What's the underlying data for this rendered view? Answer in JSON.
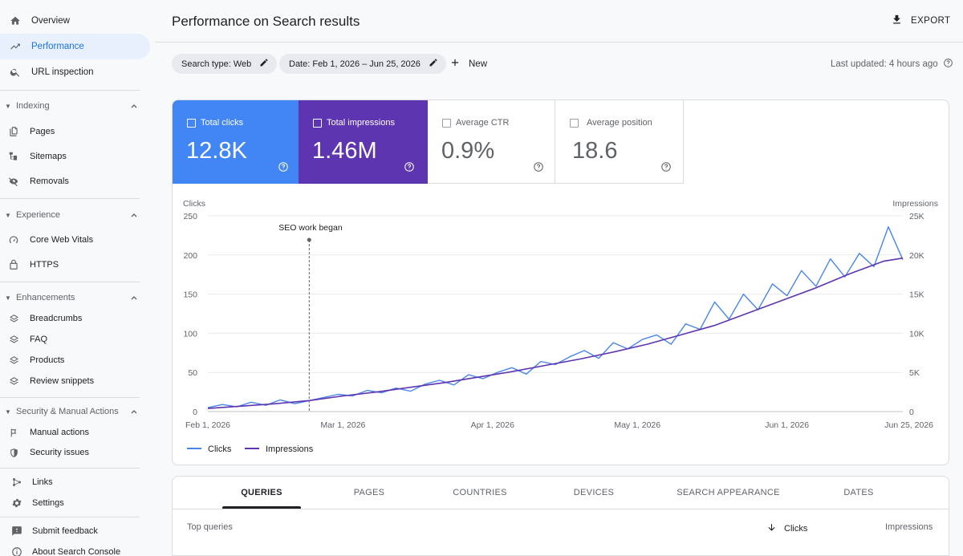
{
  "sidebar": {
    "top_items": [
      {
        "label": "Overview",
        "icon": "home-icon"
      },
      {
        "label": "Performance",
        "icon": "trending-up-icon"
      },
      {
        "label": "URL inspection",
        "icon": "search-icon"
      }
    ],
    "sections": [
      {
        "title": "Indexing",
        "items": [
          {
            "label": "Pages",
            "icon": "pages-icon"
          },
          {
            "label": "Sitemaps",
            "icon": "sitemap-icon"
          },
          {
            "label": "Removals",
            "icon": "eye-off-icon"
          }
        ]
      },
      {
        "title": "Experience",
        "items": [
          {
            "label": "Core Web Vitals",
            "icon": "gauge-icon"
          },
          {
            "label": "HTTPS",
            "icon": "lock-icon"
          }
        ]
      },
      {
        "title": "Enhancements",
        "items": [
          {
            "label": "Breadcrumbs",
            "icon": "layers-icon"
          },
          {
            "label": "FAQ",
            "icon": "layers-icon"
          },
          {
            "label": "Products",
            "icon": "layers-icon"
          },
          {
            "label": "Review snippets",
            "icon": "layers-icon"
          }
        ]
      },
      {
        "title": "Security & Manual Actions",
        "items": [
          {
            "label": "Manual actions",
            "icon": "flag-icon"
          },
          {
            "label": "Security issues",
            "icon": "shield-icon"
          }
        ]
      }
    ],
    "bottom_items": [
      {
        "label": "Links",
        "icon": "links-icon"
      },
      {
        "label": "Settings",
        "icon": "gear-icon"
      },
      {
        "label": "Submit feedback",
        "icon": "feedback-icon"
      },
      {
        "label": "About Search Console",
        "icon": "info-icon"
      }
    ]
  },
  "header": {
    "title": "Performance on Search results",
    "export_label": "EXPORT"
  },
  "filters": {
    "search_type": "Search type: Web",
    "date": "Date: Feb 1, 2026 – Jun 25, 2026",
    "new_label": "New",
    "last_updated": "Last updated: 4 hours ago"
  },
  "metrics": [
    {
      "label": "Total clicks",
      "value": "12.8K",
      "selected": true,
      "color": "#4285f4"
    },
    {
      "label": "Total impressions",
      "value": "1.46M",
      "selected": true,
      "color": "#5e35b1"
    },
    {
      "label": "Average CTR",
      "value": "0.9%",
      "selected": false,
      "color": "#ffffff"
    },
    {
      "label": "Average position",
      "value": "18.6",
      "selected": false,
      "color": "#ffffff"
    }
  ],
  "colors": {
    "clicks": "#4a86e8",
    "impressions": "#5e35b1",
    "clicks_tile": "#4285f4",
    "impressions_tile": "#5e35b1"
  },
  "chart_data": {
    "type": "line",
    "y_left_label": "Clicks",
    "y_right_label": "Impressions",
    "y_left_ticks": [
      "250",
      "200",
      "150",
      "100",
      "50",
      "0"
    ],
    "y_right_ticks": [
      "25K",
      "20K",
      "15K",
      "10K",
      "5K",
      "0"
    ],
    "ylim_left": [
      0,
      250
    ],
    "ylim_right": [
      0,
      25000
    ],
    "x_ticks": [
      "Feb 1, 2026",
      "Mar 1, 2026",
      "Apr 1, 2026",
      "May 1, 2026",
      "Jun 1, 2026",
      "Jun 25, 2026"
    ],
    "x_start": "2026-02-01",
    "x_end": "2026-06-25",
    "annotation": {
      "label": "SEO work began",
      "date": "2026-02-22"
    },
    "grid": true,
    "legend": [
      "Clicks",
      "Impressions"
    ],
    "series": [
      {
        "name": "Clicks",
        "axis": "left",
        "points": [
          [
            "2026-02-01",
            5
          ],
          [
            "2026-02-04",
            9
          ],
          [
            "2026-02-07",
            6
          ],
          [
            "2026-02-10",
            12
          ],
          [
            "2026-02-13",
            8
          ],
          [
            "2026-02-16",
            15
          ],
          [
            "2026-02-19",
            10
          ],
          [
            "2026-02-22",
            14
          ],
          [
            "2026-02-25",
            18
          ],
          [
            "2026-02-28",
            22
          ],
          [
            "2026-03-03",
            20
          ],
          [
            "2026-03-06",
            27
          ],
          [
            "2026-03-09",
            24
          ],
          [
            "2026-03-12",
            30
          ],
          [
            "2026-03-15",
            26
          ],
          [
            "2026-03-18",
            35
          ],
          [
            "2026-03-21",
            40
          ],
          [
            "2026-03-24",
            34
          ],
          [
            "2026-03-27",
            47
          ],
          [
            "2026-03-30",
            42
          ],
          [
            "2026-04-02",
            50
          ],
          [
            "2026-04-05",
            56
          ],
          [
            "2026-04-08",
            48
          ],
          [
            "2026-04-11",
            64
          ],
          [
            "2026-04-14",
            60
          ],
          [
            "2026-04-17",
            70
          ],
          [
            "2026-04-20",
            78
          ],
          [
            "2026-04-23",
            68
          ],
          [
            "2026-04-26",
            88
          ],
          [
            "2026-04-29",
            80
          ],
          [
            "2026-05-02",
            92
          ],
          [
            "2026-05-05",
            98
          ],
          [
            "2026-05-08",
            86
          ],
          [
            "2026-05-11",
            112
          ],
          [
            "2026-05-14",
            105
          ],
          [
            "2026-05-17",
            140
          ],
          [
            "2026-05-20",
            118
          ],
          [
            "2026-05-23",
            150
          ],
          [
            "2026-05-26",
            130
          ],
          [
            "2026-05-29",
            163
          ],
          [
            "2026-06-01",
            148
          ],
          [
            "2026-06-04",
            180
          ],
          [
            "2026-06-07",
            160
          ],
          [
            "2026-06-10",
            195
          ],
          [
            "2026-06-13",
            172
          ],
          [
            "2026-06-16",
            202
          ],
          [
            "2026-06-19",
            185
          ],
          [
            "2026-06-22",
            236
          ],
          [
            "2026-06-25",
            194
          ]
        ]
      },
      {
        "name": "Impressions",
        "axis": "right",
        "points": [
          [
            "2026-02-01",
            400
          ],
          [
            "2026-02-08",
            700
          ],
          [
            "2026-02-15",
            1000
          ],
          [
            "2026-02-22",
            1400
          ],
          [
            "2026-03-01",
            2000
          ],
          [
            "2026-03-08",
            2500
          ],
          [
            "2026-03-15",
            3100
          ],
          [
            "2026-03-22",
            3700
          ],
          [
            "2026-03-29",
            4400
          ],
          [
            "2026-04-05",
            5100
          ],
          [
            "2026-04-12",
            5900
          ],
          [
            "2026-04-19",
            6700
          ],
          [
            "2026-04-26",
            7600
          ],
          [
            "2026-05-03",
            8600
          ],
          [
            "2026-05-10",
            9800
          ],
          [
            "2026-05-17",
            11000
          ],
          [
            "2026-05-24",
            12600
          ],
          [
            "2026-05-31",
            14200
          ],
          [
            "2026-06-07",
            15800
          ],
          [
            "2026-06-14",
            17600
          ],
          [
            "2026-06-21",
            19200
          ],
          [
            "2026-06-25",
            19600
          ]
        ]
      }
    ]
  },
  "tabs": [
    "QUERIES",
    "PAGES",
    "COUNTRIES",
    "DEVICES",
    "SEARCH APPEARANCE",
    "DATES"
  ],
  "table": {
    "col_query": "Top queries",
    "col_clicks": "Clicks",
    "col_impressions": "Impressions"
  }
}
